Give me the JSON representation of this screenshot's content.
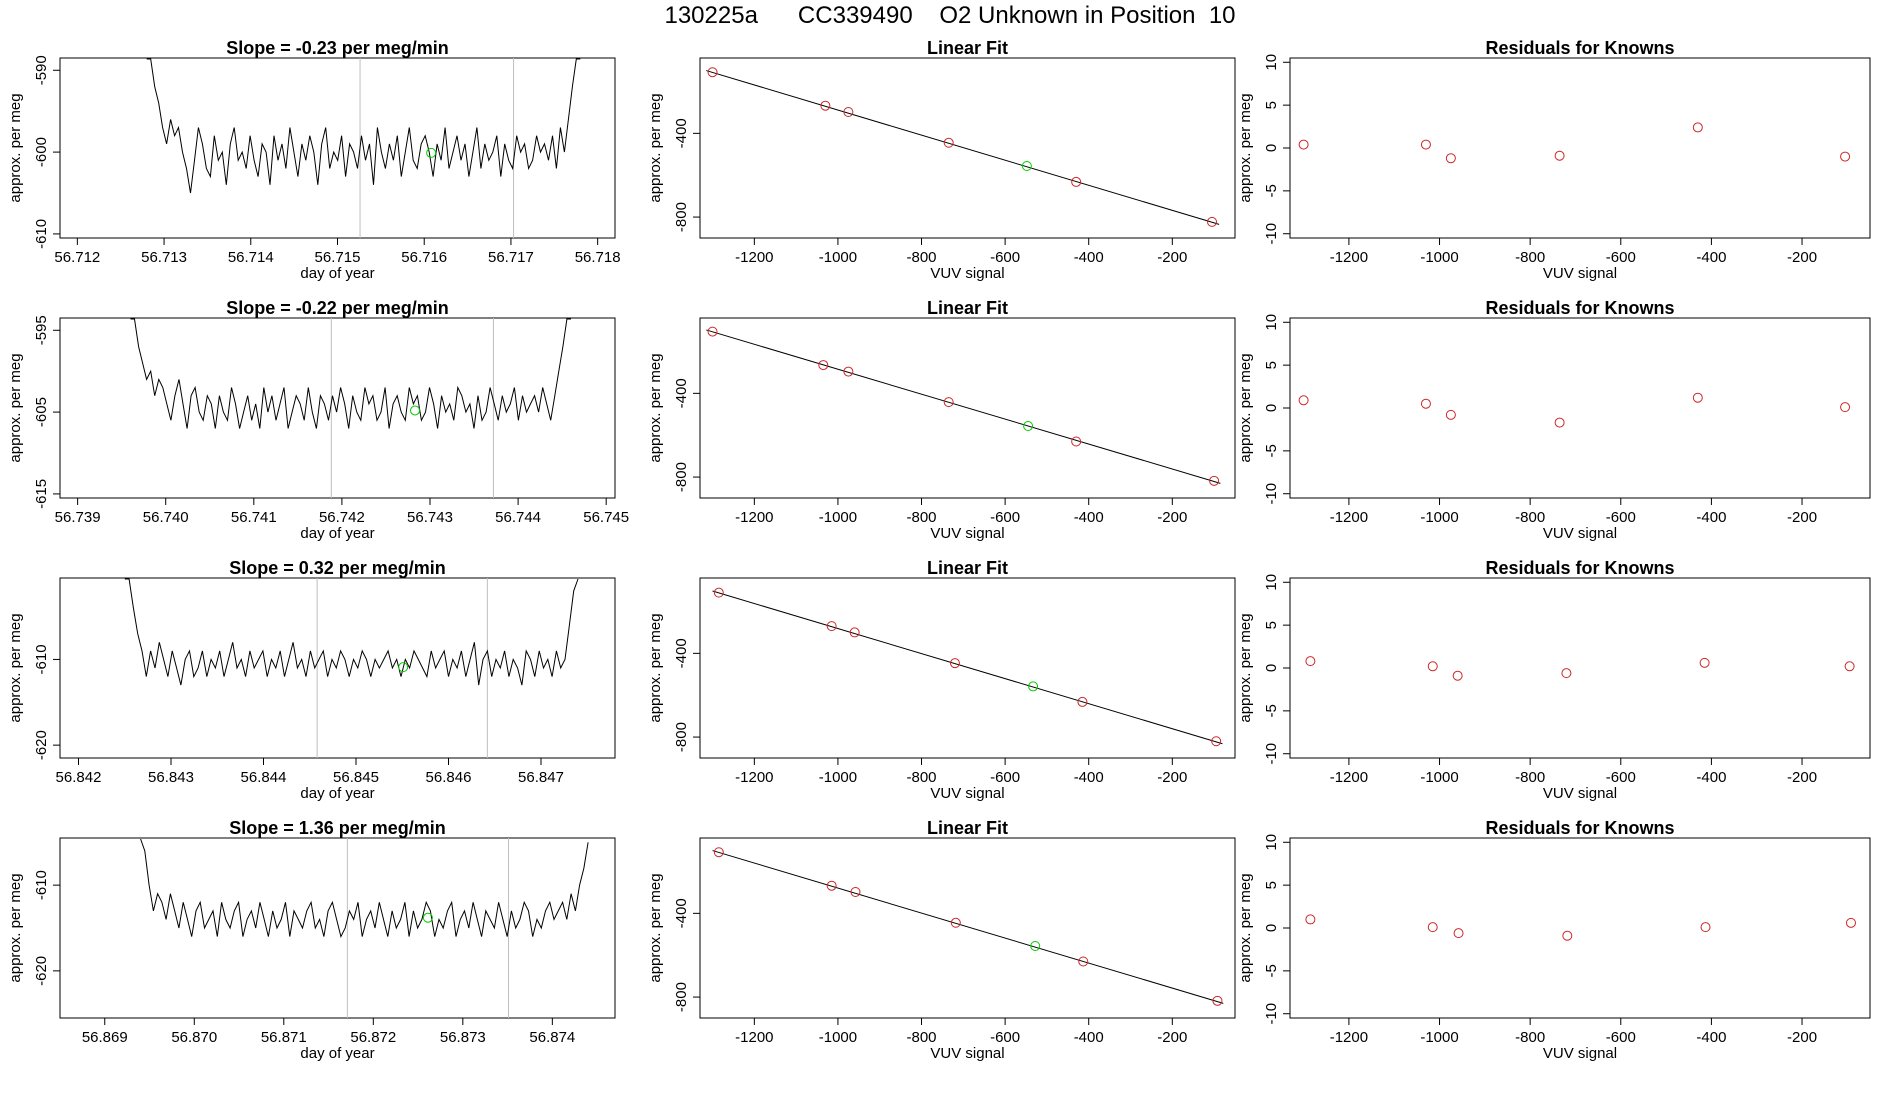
{
  "page_title": "130225a      CC339490    O2 Unknown in Position  10",
  "colors": {
    "line": "#000000",
    "known": "#cd2626",
    "unknown": "#00cc00",
    "vline": "#bebebe"
  },
  "chart_data": [
    {
      "type": "line",
      "row": 1,
      "title": "Slope =  -0.23  per meg/min",
      "xlabel": "day of year",
      "ylabel": "approx. per meg",
      "xlim": [
        56.7118,
        56.7182
      ],
      "ylim": [
        -610.5,
        -588.5
      ],
      "xticks": [
        "56.712",
        "56.713",
        "56.714",
        "56.715",
        "56.716",
        "56.717",
        "56.718"
      ],
      "yticks": [
        "-590",
        "-600",
        "-610"
      ],
      "vlines": [
        56.71526,
        56.71703
      ],
      "unknown_point": {
        "x": 56.71608,
        "y": -600.1
      },
      "series_start_x": 56.7128,
      "series_end_x": 56.7178,
      "series": [
        -585,
        -588,
        -592,
        -594,
        -597,
        -599,
        -596,
        -598,
        -597,
        -600,
        -602,
        -605,
        -601,
        -597,
        -599,
        -602,
        -603,
        -598,
        -601,
        -600,
        -604,
        -599,
        -597,
        -601,
        -600,
        -602,
        -598,
        -601,
        -603,
        -599,
        -600,
        -604,
        -598,
        -601,
        -599,
        -602,
        -597,
        -600,
        -603,
        -599,
        -601,
        -598,
        -600,
        -604,
        -599,
        -597,
        -602,
        -600,
        -601,
        -598,
        -603,
        -599,
        -600,
        -602,
        -598,
        -601,
        -599,
        -604,
        -597,
        -600,
        -602,
        -599,
        -601,
        -598,
        -603,
        -600,
        -597,
        -601,
        -602,
        -599,
        -598,
        -600,
        -603,
        -599,
        -601,
        -597,
        -602,
        -600,
        -598,
        -601,
        -599,
        -603,
        -600,
        -597,
        -602,
        -599,
        -601,
        -600,
        -598,
        -603,
        -599,
        -601,
        -602,
        -598,
        -600,
        -599,
        -602,
        -601,
        -598,
        -600,
        -599,
        -601,
        -598,
        -602,
        -597,
        -600,
        -596,
        -592,
        -588,
        -584
      ],
      "fit_points": [
        [
          -1300,
          -108
        ],
        [
          -1030,
          -268
        ],
        [
          -975,
          -298
        ],
        [
          -735,
          -445
        ],
        [
          -548,
          -556
        ],
        [
          -430,
          -632
        ],
        [
          -105,
          -823
        ]
      ],
      "fit_unknown_index": 4,
      "fit_line": [
        [
          -1315,
          -100
        ],
        [
          -88,
          -835
        ]
      ],
      "residuals": [
        [
          -1300,
          0.4
        ],
        [
          -1030,
          0.4
        ],
        [
          -975,
          -1.2
        ],
        [
          -735,
          -0.9
        ],
        [
          -430,
          2.4
        ],
        [
          -105,
          -1.0
        ]
      ]
    },
    {
      "type": "line",
      "row": 2,
      "title": "Slope =  -0.22  per meg/min",
      "xlabel": "day of year",
      "ylabel": "approx. per meg",
      "xlim": [
        56.7388,
        56.7451
      ],
      "ylim": [
        -615.5,
        -593.5
      ],
      "xticks": [
        "56.739",
        "56.740",
        "56.741",
        "56.742",
        "56.743",
        "56.744",
        "56.745"
      ],
      "yticks": [
        "-595",
        "-605",
        "-615"
      ],
      "vlines": [
        56.74188,
        56.74372
      ],
      "unknown_point": {
        "x": 56.74283,
        "y": -604.8
      },
      "series_start_x": 56.7396,
      "series_end_x": 56.7446,
      "series": [
        -590,
        -593,
        -597,
        -599,
        -601,
        -600,
        -603,
        -601,
        -602,
        -604,
        -606,
        -603,
        -601,
        -604,
        -607,
        -603,
        -602,
        -605,
        -606,
        -603,
        -604,
        -607,
        -603,
        -605,
        -606,
        -602,
        -604,
        -607,
        -605,
        -603,
        -606,
        -604,
        -607,
        -602,
        -605,
        -603,
        -606,
        -604,
        -602,
        -607,
        -605,
        -603,
        -604,
        -606,
        -602,
        -605,
        -607,
        -603,
        -604,
        -606,
        -603,
        -605,
        -602,
        -604,
        -607,
        -603,
        -605,
        -606,
        -602,
        -604,
        -603,
        -606,
        -605,
        -602,
        -607,
        -604,
        -603,
        -605,
        -606,
        -602,
        -604,
        -603,
        -606,
        -605,
        -602,
        -604,
        -607,
        -603,
        -605,
        -604,
        -606,
        -602,
        -603,
        -605,
        -604,
        -607,
        -603,
        -606,
        -605,
        -602,
        -604,
        -606,
        -603,
        -605,
        -604,
        -602,
        -606,
        -603,
        -605,
        -604,
        -603,
        -605,
        -602,
        -604,
        -606,
        -603,
        -600,
        -597,
        -593,
        -590
      ],
      "fit_points": [
        [
          -1300,
          -105
        ],
        [
          -1035,
          -265
        ],
        [
          -975,
          -296
        ],
        [
          -735,
          -442
        ],
        [
          -545,
          -556
        ],
        [
          -430,
          -630
        ],
        [
          -100,
          -818
        ]
      ],
      "fit_unknown_index": 4,
      "fit_line": [
        [
          -1315,
          -97
        ],
        [
          -85,
          -830
        ]
      ],
      "residuals": [
        [
          -1300,
          0.9
        ],
        [
          -1030,
          0.5
        ],
        [
          -975,
          -0.8
        ],
        [
          -735,
          -1.7
        ],
        [
          -430,
          1.2
        ],
        [
          -105,
          0.1
        ]
      ]
    },
    {
      "type": "line",
      "row": 3,
      "title": "Slope =  0.32  per meg/min",
      "xlabel": "day of year",
      "ylabel": "approx. per meg",
      "xlim": [
        56.8418,
        56.8478
      ],
      "ylim": [
        -621.5,
        -600.5
      ],
      "xticks": [
        "56.842",
        "56.843",
        "56.844",
        "56.845",
        "56.846",
        "56.847"
      ],
      "yticks": [
        "-610",
        "-620"
      ],
      "vlines": [
        56.84458,
        56.84642
      ],
      "unknown_point": {
        "x": 56.84551,
        "y": -610.9
      },
      "series_start_x": 56.8425,
      "series_end_x": 56.8474,
      "series": [
        -597,
        -600,
        -604,
        -607,
        -609,
        -612,
        -609,
        -611,
        -608,
        -610,
        -612,
        -609,
        -611,
        -613,
        -610,
        -609,
        -612,
        -611,
        -609,
        -612,
        -610,
        -611,
        -609,
        -612,
        -610,
        -608,
        -611,
        -610,
        -612,
        -609,
        -611,
        -610,
        -609,
        -612,
        -610,
        -611,
        -609,
        -612,
        -610,
        -608,
        -611,
        -610,
        -612,
        -609,
        -611,
        -610,
        -609,
        -612,
        -610,
        -611,
        -609,
        -610,
        -612,
        -610,
        -611,
        -609,
        -610,
        -612,
        -610,
        -611,
        -610,
        -609,
        -611,
        -610,
        -612,
        -610,
        -611,
        -609,
        -610,
        -611,
        -612,
        -609,
        -611,
        -610,
        -609,
        -612,
        -610,
        -611,
        -609,
        -612,
        -610,
        -608,
        -613,
        -610,
        -609,
        -612,
        -610,
        -611,
        -609,
        -612,
        -610,
        -611,
        -613,
        -609,
        -610,
        -612,
        -609,
        -611,
        -610,
        -612,
        -609,
        -611,
        -610,
        -606,
        -602,
        -598
      ],
      "fit_points": [
        [
          -1285,
          -110
        ],
        [
          -1015,
          -270
        ],
        [
          -960,
          -300
        ],
        [
          -720,
          -447
        ],
        [
          -533,
          -558
        ],
        [
          -415,
          -632
        ],
        [
          -95,
          -820
        ]
      ],
      "fit_unknown_index": 4,
      "fit_line": [
        [
          -1300,
          -102
        ],
        [
          -80,
          -832
        ]
      ],
      "residuals": [
        [
          -1285,
          0.8
        ],
        [
          -1015,
          0.2
        ],
        [
          -960,
          -0.9
        ],
        [
          -720,
          -0.6
        ],
        [
          -415,
          0.6
        ],
        [
          -95,
          0.2
        ]
      ]
    },
    {
      "type": "line",
      "row": 4,
      "title": "Slope =  1.36  per meg/min",
      "xlabel": "day of year",
      "ylabel": "approx. per meg",
      "xlim": [
        56.8685,
        56.8747
      ],
      "ylim": [
        -625.5,
        -604.5
      ],
      "xticks": [
        "56.869",
        "56.870",
        "56.871",
        "56.872",
        "56.873",
        "56.874"
      ],
      "yticks": [
        "-610",
        "-620"
      ],
      "vlines": [
        56.87171,
        56.87351
      ],
      "unknown_point": {
        "x": 56.87261,
        "y": -613.8
      },
      "series_start_x": 56.8694,
      "series_end_x": 56.8744,
      "series": [
        -602,
        -606,
        -610,
        -613,
        -611,
        -612,
        -614,
        -611,
        -613,
        -615,
        -612,
        -614,
        -616,
        -613,
        -612,
        -615,
        -614,
        -613,
        -616,
        -612,
        -614,
        -615,
        -613,
        -612,
        -616,
        -614,
        -613,
        -615,
        -612,
        -614,
        -616,
        -613,
        -615,
        -614,
        -612,
        -616,
        -613,
        -614,
        -615,
        -613,
        -612,
        -615,
        -614,
        -616,
        -613,
        -612,
        -614,
        -616,
        -615,
        -613,
        -614,
        -612,
        -616,
        -614,
        -613,
        -615,
        -612,
        -614,
        -616,
        -613,
        -615,
        -614,
        -612,
        -616,
        -613,
        -615,
        -614,
        -612,
        -613,
        -616,
        -614,
        -615,
        -613,
        -612,
        -616,
        -614,
        -613,
        -615,
        -612,
        -614,
        -616,
        -613,
        -614,
        -615,
        -612,
        -614,
        -616,
        -613,
        -615,
        -614,
        -612,
        -613,
        -616,
        -614,
        -615,
        -613,
        -612,
        -614,
        -613,
        -612,
        -614,
        -611,
        -613,
        -610,
        -608,
        -605
      ],
      "fit_points": [
        [
          -1285,
          -108
        ],
        [
          -1015,
          -268
        ],
        [
          -958,
          -298
        ],
        [
          -718,
          -445
        ],
        [
          -528,
          -556
        ],
        [
          -413,
          -630
        ],
        [
          -92,
          -818
        ]
      ],
      "fit_unknown_index": 4,
      "fit_line": [
        [
          -1300,
          -100
        ],
        [
          -78,
          -830
        ]
      ],
      "residuals": [
        [
          -1285,
          1.0
        ],
        [
          -1015,
          0.1
        ],
        [
          -958,
          -0.6
        ],
        [
          -718,
          -0.9
        ],
        [
          -413,
          0.1
        ],
        [
          -92,
          0.6
        ]
      ]
    }
  ],
  "fit_panel": {
    "title": "Linear Fit",
    "xlabel": "VUV signal",
    "ylabel": "approx. per meg",
    "xlim": [
      -1330,
      -50
    ],
    "ylim": [
      -900,
      -40
    ],
    "xticks": [
      "-1200",
      "-1000",
      "-800",
      "-600",
      "-400",
      "-200"
    ],
    "yticks": [
      "-400",
      "-800"
    ]
  },
  "resid_panel": {
    "title": "Residuals for Knowns",
    "xlabel": "VUV signal",
    "ylabel": "approx. per meg",
    "xlim": [
      -1330,
      -50
    ],
    "ylim": [
      -10.5,
      10.5
    ],
    "xticks": [
      "-1200",
      "-1000",
      "-800",
      "-600",
      "-400",
      "-200"
    ],
    "yticks": [
      "10",
      "5",
      "0",
      "-5",
      "-10"
    ]
  }
}
